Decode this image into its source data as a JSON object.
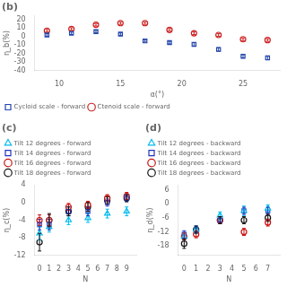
{
  "chart_data": [
    {
      "type": "scatter",
      "title": "(b)",
      "xlabel": "α(°)",
      "ylabel": "η_b(%)",
      "x": [
        9,
        11,
        13,
        15,
        17,
        19,
        21,
        23,
        25,
        27
      ],
      "series": [
        {
          "name": "Cycloid scale - forward",
          "color": "#2244aa",
          "marker": "square",
          "values": [
            2,
            4,
            6,
            3,
            -5,
            -7,
            -9,
            -15,
            -23,
            -25
          ],
          "errors": [
            1.5,
            1.5,
            1.5,
            1.5,
            1.5,
            1.5,
            2,
            2,
            2,
            2
          ]
        },
        {
          "name": "Ctenoid scale - forward",
          "color": "#cc2222",
          "marker": "circle",
          "values": [
            7,
            9,
            14,
            16,
            16,
            8,
            4,
            2,
            -3,
            -4
          ],
          "errors": [
            1.5,
            1.5,
            1.5,
            1.5,
            1.5,
            1.5,
            1.5,
            1.5,
            1.5,
            1.5
          ]
        }
      ],
      "xlim": [
        8,
        28
      ],
      "ylim": [
        -40,
        25
      ],
      "xticks": [
        10,
        15,
        20,
        25
      ],
      "yticks": [
        -40,
        -30,
        -20,
        -10,
        0,
        10,
        20
      ],
      "legend": "lower left",
      "grid": false
    },
    {
      "type": "scatter",
      "title": "(c)",
      "xlabel": "N",
      "ylabel": "η_c(%)",
      "x": [
        0,
        1,
        3,
        5,
        7,
        9
      ],
      "series": [
        {
          "name": "Tilt 12 degrees - forward",
          "color": "#00bbee",
          "marker": "triangle",
          "values": [
            -7,
            -5.5,
            -4,
            -3.5,
            -2.5,
            -2
          ],
          "errors": [
            1.5,
            1.2,
            1.0,
            1.0,
            1.0,
            1.0
          ]
        },
        {
          "name": "Tilt 14 degrees - forward",
          "color": "#2233bb",
          "marker": "square",
          "values": [
            -5,
            -5,
            -2,
            -2,
            0,
            1
          ],
          "errors": [
            1.2,
            1.2,
            1.0,
            1.0,
            0.8,
            0.8
          ]
        },
        {
          "name": "Tilt 16 degrees - forward",
          "color": "#cc1111",
          "marker": "circle",
          "values": [
            -4,
            -4,
            -1,
            -0.5,
            1,
            1.5
          ],
          "errors": [
            1.2,
            1.2,
            0.8,
            0.8,
            0.8,
            0.8
          ]
        },
        {
          "name": "Tilt 18 degrees - forward",
          "color": "#111111",
          "marker": "circle",
          "values": [
            -9,
            -4,
            -2,
            -1,
            0.5,
            1
          ],
          "errors": [
            2.0,
            1.5,
            1.0,
            1.0,
            0.8,
            0.8
          ]
        }
      ],
      "xlim": [
        -0.5,
        10
      ],
      "ylim": [
        -12,
        4
      ],
      "xticks": [
        0,
        1,
        2,
        3,
        4,
        5,
        6,
        7,
        8,
        9
      ],
      "yticks": [
        -12,
        -8,
        -4,
        0,
        4
      ],
      "legend": "upper left",
      "grid": false
    },
    {
      "type": "scatter",
      "title": "(d)",
      "xlabel": "N",
      "ylabel": "η_d(%)",
      "x": [
        0,
        1,
        3,
        5,
        7
      ],
      "series": [
        {
          "name": "Tilt 12 degrees - backward",
          "color": "#00bbee",
          "marker": "triangle",
          "values": [
            -14,
            -11,
            -5,
            -3,
            -2
          ],
          "errors": [
            1.5,
            1.5,
            1.5,
            2.0,
            1.5
          ]
        },
        {
          "name": "Tilt 14 degrees - backward",
          "color": "#2233bb",
          "marker": "square",
          "values": [
            -13,
            -11,
            -7,
            -3,
            -3
          ],
          "errors": [
            1.5,
            1.5,
            1.5,
            1.5,
            1.5
          ]
        },
        {
          "name": "Tilt 16 degrees - backward",
          "color": "#cc1111",
          "marker": "circle",
          "values": [
            -14,
            -13,
            -7,
            -12,
            -8
          ],
          "errors": [
            1.5,
            1.5,
            1.5,
            1.5,
            1.5
          ]
        },
        {
          "name": "Tilt 18 degrees - backward",
          "color": "#111111",
          "marker": "circle",
          "values": [
            -17,
            -11,
            -7,
            -7,
            -6
          ],
          "errors": [
            2.0,
            1.5,
            1.5,
            1.5,
            1.5
          ]
        }
      ],
      "xlim": [
        -0.5,
        8
      ],
      "ylim": [
        -22,
        8
      ],
      "xticks": [
        0,
        1,
        2,
        3,
        4,
        5,
        6,
        7
      ],
      "yticks": [
        -18,
        -12,
        -6,
        0,
        6
      ],
      "legend": "upper left",
      "grid": false
    }
  ]
}
